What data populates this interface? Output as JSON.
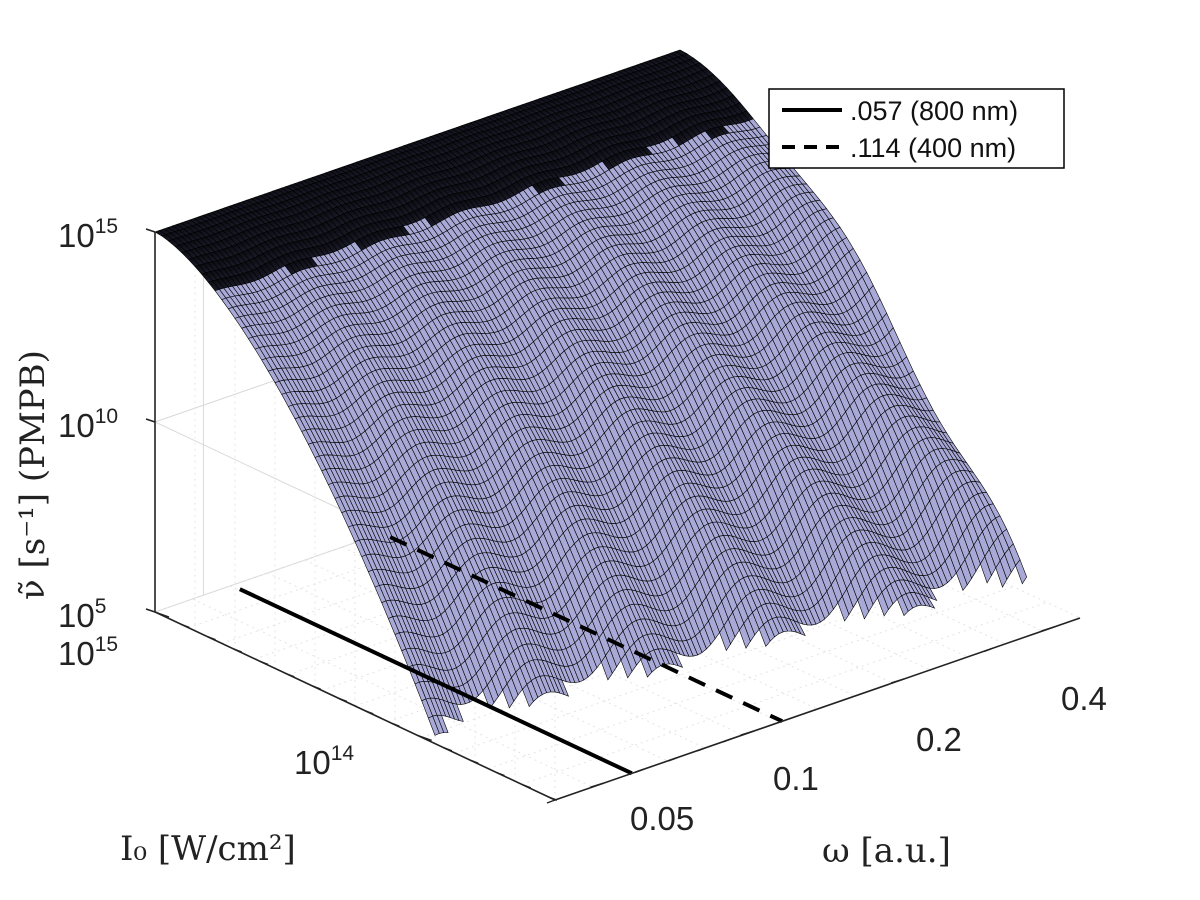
{
  "chart_data": {
    "type": "surface",
    "title": "",
    "zlabel": "ν̃ [s⁻¹] (PMPB)",
    "xlabel": "ω [a.u.]",
    "ylabel": "I₀ [W/cm²]",
    "xscale": "log",
    "yscale": "log",
    "zscale": "log",
    "xlim": [
      0.04,
      0.45
    ],
    "ylim": [
      30000000000000,
      1000000000000000
    ],
    "zlim": [
      100000,
      1000000000000000
    ],
    "x_ticks": [
      "0.05",
      "0.1",
      "0.2",
      "0.4"
    ],
    "y_ticks": [
      {
        "base": "10",
        "exp": "14"
      },
      {
        "base": "10",
        "exp": "15"
      }
    ],
    "z_ticks": [
      {
        "base": "10",
        "exp": "5"
      },
      {
        "base": "10",
        "exp": "10"
      },
      {
        "base": "10",
        "exp": "15"
      }
    ],
    "surface": {
      "color": "#a9a9d8",
      "edge_color": "#000000",
      "value_at_high_intensity": 1000000000000000,
      "multiphoton_steps_visible": 7
    },
    "lines": [
      {
        "name": ".057 (800 nm)",
        "style": "solid",
        "omega": 0.057
      },
      {
        "name": ".114 (400 nm)",
        "style": "dashed",
        "omega": 0.114
      }
    ],
    "grid": true,
    "legend_position": "top-right",
    "view": "3d"
  }
}
